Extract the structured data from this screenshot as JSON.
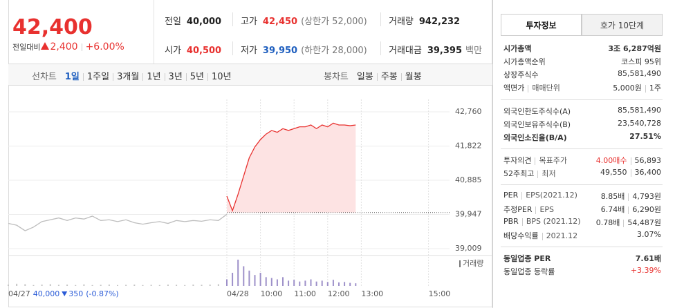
{
  "quote": {
    "price": "42,400",
    "change_label": "전일대비",
    "change": "2,400",
    "change_pct": "+6.00%",
    "color": "#e8312f"
  },
  "summary": [
    {
      "label": "전일",
      "value": "40,000"
    },
    {
      "label": "고가",
      "value": "42,450",
      "note": "(상한가 52,000)",
      "color": "#e8312f"
    },
    {
      "label": "거래량",
      "value": "942,232"
    },
    {
      "label": "시가",
      "value": "40,500",
      "color": "#e8312f"
    },
    {
      "label": "저가",
      "value": "39,950",
      "note": "(하한가 28,000)",
      "color": "#1f5fbf"
    },
    {
      "label": "거래대금",
      "value": "39,395",
      "note": "백만"
    }
  ],
  "chart_tabs": {
    "line_label": "선차트",
    "line_periods": [
      "1일",
      "1주일",
      "3개월",
      "1년",
      "3년",
      "5년",
      "10년"
    ],
    "active": 0,
    "candle_label": "봉차트",
    "candle_periods": [
      "일봉",
      "주봉",
      "월봉"
    ]
  },
  "chart_data": {
    "type": "line",
    "categories": [
      null,
      null,
      null,
      null,
      null,
      null,
      null,
      null,
      null,
      null,
      null,
      null,
      null,
      null,
      null,
      null,
      null,
      null,
      null,
      null,
      null,
      null,
      null,
      null,
      null,
      null,
      null,
      "04/28",
      null,
      null,
      null,
      null,
      null,
      "10:00",
      null,
      null,
      null,
      null,
      null,
      "11:00",
      null,
      null,
      null,
      null,
      null,
      "12:00",
      null,
      null,
      null,
      null,
      null,
      "13:00",
      null,
      null,
      null,
      null,
      null,
      null,
      null,
      null,
      null,
      null,
      null,
      "15:00",
      null,
      null,
      null
    ],
    "series": [
      {
        "color": "#bdbdbd",
        "values": [
          39700,
          39650,
          39500,
          39600,
          39750,
          39800,
          39850,
          39780,
          39850,
          39820,
          39900,
          39780,
          39800,
          39750,
          39800,
          39720,
          39680,
          39720,
          39750,
          39700,
          39780,
          39750,
          39780,
          39760,
          39800,
          39780,
          39950,
          null,
          null,
          null,
          null,
          null,
          null,
          null,
          null,
          null,
          null,
          null,
          null,
          null,
          null,
          null,
          null,
          null,
          null,
          null,
          null,
          null,
          null,
          null,
          null,
          null,
          null,
          null,
          null,
          null,
          null,
          null,
          null,
          null,
          null,
          null,
          null,
          null,
          null,
          null,
          null
        ]
      },
      {
        "color": "#e8312f",
        "fill": "#fde3e3",
        "values": [
          null,
          null,
          null,
          null,
          null,
          null,
          null,
          null,
          null,
          null,
          null,
          null,
          null,
          null,
          null,
          null,
          null,
          null,
          null,
          null,
          null,
          null,
          null,
          null,
          null,
          null,
          null,
          40450,
          40050,
          40500,
          41000,
          41500,
          41800,
          42000,
          42150,
          42250,
          42200,
          42300,
          42250,
          42300,
          42350,
          42350,
          42400,
          42300,
          42400,
          42350,
          42450,
          42400,
          42400,
          42380,
          42400,
          null,
          null,
          null,
          null,
          null,
          null,
          null,
          null,
          null,
          null,
          null,
          null,
          null,
          null,
          null,
          null
        ]
      }
    ],
    "baseline": 40000,
    "ylim": [
      39009,
      42760
    ],
    "yticks": [
      {
        "value": 39009,
        "label": "39,009"
      },
      {
        "value": 39947,
        "label": "39,947"
      },
      {
        "value": 40885,
        "label": "40,885"
      },
      {
        "value": 41822,
        "label": "41,822"
      },
      {
        "value": 42760,
        "label": "42,760"
      }
    ],
    "grid": true,
    "volume_label": "거래량",
    "volume_series": [
      {
        "color": "#c6c6c6",
        "values": [
          3000,
          5000,
          4000,
          2000,
          3000,
          4000,
          2500,
          3000,
          2000,
          3500,
          2000,
          2500,
          3000,
          2000,
          2500,
          3000,
          2000,
          2500,
          2000,
          3000,
          2500,
          2000,
          3000,
          2500,
          3000,
          4000,
          6000,
          null,
          null,
          null,
          null,
          null,
          null,
          null,
          null,
          null,
          null,
          null,
          null,
          null,
          null,
          null,
          null,
          null,
          null,
          null,
          null,
          null,
          null,
          null,
          null,
          null,
          null,
          null,
          null,
          null,
          null,
          null,
          null,
          null,
          null,
          null,
          null,
          null,
          null,
          null,
          null
        ]
      },
      {
        "color": "#9d90c9",
        "values": [
          null,
          null,
          null,
          null,
          null,
          null,
          null,
          null,
          null,
          null,
          null,
          null,
          null,
          null,
          null,
          null,
          null,
          null,
          null,
          null,
          null,
          null,
          null,
          null,
          null,
          null,
          null,
          15000,
          30000,
          60000,
          45000,
          35000,
          25000,
          30000,
          20000,
          18000,
          15000,
          20000,
          12000,
          14000,
          10000,
          12000,
          15000,
          10000,
          12000,
          9000,
          14000,
          8000,
          9000,
          7000,
          6000,
          null,
          null,
          null,
          null,
          null,
          null,
          null,
          null,
          null,
          null,
          null,
          null,
          null,
          null,
          null,
          null
        ]
      }
    ],
    "prev_day": {
      "date": "04/27",
      "close": "40,000",
      "change": "350",
      "change_pct": "(-0.87%)",
      "color": "#2a5bd7"
    }
  },
  "info_tabs": [
    "투자정보",
    "호가 10단계"
  ],
  "info_active": 0,
  "info_sections": [
    {
      "rows": [
        {
          "label": [
            "시가총액"
          ],
          "value": [
            "3조 6,287억원"
          ],
          "bold": true
        },
        {
          "label": [
            "시가총액순위"
          ],
          "value": [
            "코스피 95위"
          ]
        },
        {
          "label": [
            "상장주식수"
          ],
          "value": [
            "85,581,490"
          ]
        },
        {
          "label": [
            "액면가",
            "매매단위"
          ],
          "value": [
            "5,000원",
            "1주"
          ]
        }
      ]
    },
    {
      "rows": [
        {
          "label": [
            "외국인한도주식수(A)"
          ],
          "value": [
            "85,581,490"
          ]
        },
        {
          "label": [
            "외국인보유주식수(B)"
          ],
          "value": [
            "23,540,728"
          ]
        },
        {
          "label": [
            "외국인소진율(B/A)"
          ],
          "value": [
            "27.51%"
          ],
          "bold": true
        }
      ]
    },
    {
      "rows": [
        {
          "label": [
            "투자의견",
            "목표주가"
          ],
          "value": [
            "4.00매수",
            "56,893"
          ],
          "color": "#e8312f"
        },
        {
          "label": [
            "52주최고",
            "최저"
          ],
          "value": [
            "49,550",
            "36,400"
          ]
        }
      ]
    },
    {
      "rows": [
        {
          "label": [
            "PER",
            "EPS(2021.12)"
          ],
          "value": [
            "8.85배",
            "4,793원"
          ]
        },
        {
          "label": [
            "추정PER",
            "EPS"
          ],
          "value": [
            "6.74배",
            "6,290원"
          ]
        },
        {
          "label": [
            "PBR",
            "BPS (2021.12)"
          ],
          "value": [
            "0.78배",
            "54,487원"
          ]
        },
        {
          "label": [
            "배당수익률",
            "2021.12"
          ],
          "value": [
            "3.07%"
          ]
        }
      ]
    },
    {
      "rows": [
        {
          "label": [
            "동일업종 PER"
          ],
          "value": [
            "7.61배"
          ],
          "bold": true
        },
        {
          "label": [
            "동일업종 등락률"
          ],
          "value": [
            "+3.39%"
          ],
          "color": "#e8312f"
        }
      ]
    }
  ]
}
